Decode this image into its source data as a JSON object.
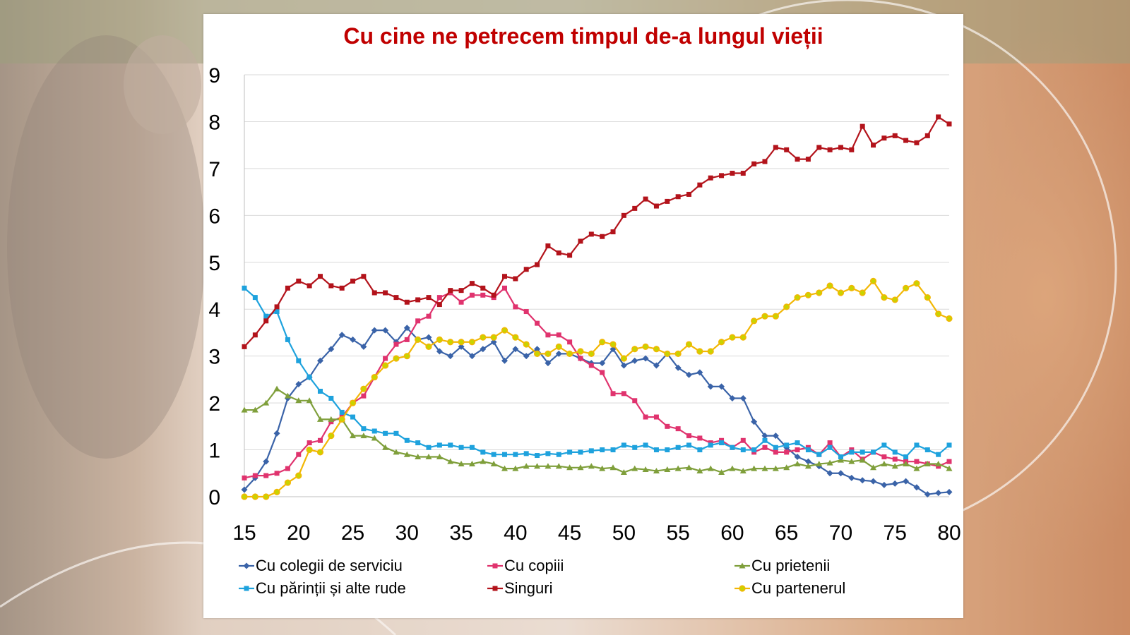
{
  "chart_data": {
    "type": "line",
    "title": "Cu cine ne petrecem timpul de-a lungul vieții",
    "xlabel": "",
    "ylabel": "",
    "xlim": [
      15,
      80
    ],
    "ylim": [
      0,
      9
    ],
    "x_ticks": [
      15,
      20,
      25,
      30,
      35,
      40,
      45,
      50,
      55,
      60,
      65,
      70,
      75,
      80
    ],
    "y_ticks": [
      0,
      1,
      2,
      3,
      4,
      5,
      6,
      7,
      8,
      9
    ],
    "grid": true,
    "legend_position": "bottom",
    "x": [
      15,
      16,
      17,
      18,
      19,
      20,
      21,
      22,
      23,
      24,
      25,
      26,
      27,
      28,
      29,
      30,
      31,
      32,
      33,
      34,
      35,
      36,
      37,
      38,
      39,
      40,
      41,
      42,
      43,
      44,
      45,
      46,
      47,
      48,
      49,
      50,
      51,
      52,
      53,
      54,
      55,
      56,
      57,
      58,
      59,
      60,
      61,
      62,
      63,
      64,
      65,
      66,
      67,
      68,
      69,
      70,
      71,
      72,
      73,
      74,
      75,
      76,
      77,
      78,
      79,
      80
    ],
    "series": [
      {
        "name": "Cu colegii de serviciu",
        "color": "#3a63a8",
        "marker": "diamond",
        "values": [
          0.15,
          0.4,
          0.75,
          1.35,
          2.1,
          2.4,
          2.55,
          2.9,
          3.15,
          3.45,
          3.35,
          3.2,
          3.55,
          3.55,
          3.3,
          3.6,
          3.35,
          3.4,
          3.1,
          3.0,
          3.2,
          3.0,
          3.15,
          3.3,
          2.9,
          3.15,
          3.0,
          3.15,
          2.85,
          3.05,
          3.05,
          2.95,
          2.85,
          2.85,
          3.15,
          2.8,
          2.9,
          2.95,
          2.8,
          3.05,
          2.75,
          2.6,
          2.65,
          2.35,
          2.35,
          2.1,
          2.1,
          1.6,
          1.3,
          1.3,
          1.05,
          0.85,
          0.75,
          0.65,
          0.5,
          0.5,
          0.4,
          0.35,
          0.33,
          0.25,
          0.28,
          0.33,
          0.2,
          0.05,
          0.08,
          0.1
        ]
      },
      {
        "name": "Cu copiii",
        "color": "#e0336e",
        "marker": "square",
        "values": [
          0.4,
          0.45,
          0.45,
          0.5,
          0.6,
          0.9,
          1.15,
          1.2,
          1.6,
          1.7,
          2.0,
          2.15,
          2.55,
          2.95,
          3.25,
          3.35,
          3.75,
          3.85,
          4.25,
          4.35,
          4.15,
          4.3,
          4.3,
          4.25,
          4.45,
          4.05,
          3.95,
          3.7,
          3.45,
          3.45,
          3.3,
          2.95,
          2.8,
          2.65,
          2.2,
          2.2,
          2.05,
          1.7,
          1.7,
          1.5,
          1.45,
          1.3,
          1.25,
          1.15,
          1.2,
          1.05,
          1.2,
          0.95,
          1.05,
          0.95,
          0.95,
          1.0,
          1.05,
          0.9,
          1.15,
          0.85,
          1.0,
          0.8,
          0.95,
          0.85,
          0.8,
          0.75,
          0.75,
          0.7,
          0.65,
          0.75
        ]
      },
      {
        "name": "Cu prietenii",
        "color": "#7f9f3b",
        "marker": "triangle",
        "values": [
          1.85,
          1.85,
          2.0,
          2.3,
          2.15,
          2.05,
          2.05,
          1.65,
          1.65,
          1.65,
          1.3,
          1.3,
          1.25,
          1.05,
          0.95,
          0.9,
          0.85,
          0.85,
          0.85,
          0.75,
          0.7,
          0.7,
          0.75,
          0.7,
          0.6,
          0.6,
          0.65,
          0.65,
          0.65,
          0.65,
          0.62,
          0.62,
          0.65,
          0.6,
          0.62,
          0.52,
          0.6,
          0.58,
          0.55,
          0.58,
          0.6,
          0.62,
          0.55,
          0.6,
          0.52,
          0.6,
          0.55,
          0.6,
          0.6,
          0.6,
          0.62,
          0.7,
          0.65,
          0.7,
          0.72,
          0.78,
          0.75,
          0.78,
          0.62,
          0.7,
          0.65,
          0.7,
          0.6,
          0.7,
          0.7,
          0.6
        ]
      },
      {
        "name": "Cu părinții și alte rude",
        "color": "#1ea2dd",
        "marker": "square",
        "values": [
          4.45,
          4.25,
          3.85,
          3.95,
          3.35,
          2.9,
          2.55,
          2.25,
          2.1,
          1.8,
          1.7,
          1.45,
          1.4,
          1.35,
          1.35,
          1.2,
          1.15,
          1.05,
          1.1,
          1.1,
          1.05,
          1.05,
          0.95,
          0.9,
          0.9,
          0.9,
          0.92,
          0.88,
          0.92,
          0.9,
          0.95,
          0.95,
          0.98,
          1.0,
          1.0,
          1.1,
          1.05,
          1.1,
          1.0,
          1.0,
          1.05,
          1.1,
          1.0,
          1.1,
          1.15,
          1.05,
          1.0,
          1.0,
          1.2,
          1.05,
          1.1,
          1.15,
          1.0,
          0.9,
          1.05,
          0.85,
          0.95,
          0.95,
          0.95,
          1.1,
          0.95,
          0.85,
          1.1,
          1.0,
          0.9,
          1.1
        ]
      },
      {
        "name": "Singuri",
        "color": "#b3131b",
        "marker": "square",
        "values": [
          3.2,
          3.45,
          3.75,
          4.05,
          4.45,
          4.6,
          4.5,
          4.7,
          4.5,
          4.45,
          4.6,
          4.7,
          4.35,
          4.35,
          4.25,
          4.15,
          4.2,
          4.25,
          4.1,
          4.4,
          4.4,
          4.55,
          4.45,
          4.3,
          4.7,
          4.65,
          4.85,
          4.95,
          5.35,
          5.2,
          5.15,
          5.45,
          5.6,
          5.55,
          5.65,
          6.0,
          6.15,
          6.35,
          6.2,
          6.3,
          6.4,
          6.45,
          6.65,
          6.8,
          6.85,
          6.9,
          6.9,
          7.1,
          7.15,
          7.45,
          7.4,
          7.2,
          7.2,
          7.45,
          7.4,
          7.45,
          7.4,
          7.9,
          7.5,
          7.65,
          7.7,
          7.6,
          7.55,
          7.7,
          8.1,
          7.95
        ]
      },
      {
        "name": "Cu partenerul",
        "color": "#f2b705",
        "marker": "circle",
        "values": [
          0.0,
          0.0,
          0.0,
          0.1,
          0.3,
          0.45,
          1.0,
          0.95,
          1.3,
          1.65,
          2.0,
          2.3,
          2.55,
          2.8,
          2.95,
          3.0,
          3.35,
          3.2,
          3.35,
          3.3,
          3.3,
          3.3,
          3.4,
          3.4,
          3.55,
          3.4,
          3.25,
          3.05,
          3.05,
          3.2,
          3.05,
          3.1,
          3.05,
          3.3,
          3.25,
          2.95,
          3.15,
          3.2,
          3.15,
          3.05,
          3.05,
          3.25,
          3.1,
          3.1,
          3.3,
          3.4,
          3.4,
          3.75,
          3.85,
          3.85,
          4.05,
          4.25,
          4.3,
          4.35,
          4.5,
          4.35,
          4.45,
          4.35,
          4.6,
          4.25,
          4.2,
          4.45,
          4.55,
          4.25,
          3.9,
          3.8
        ]
      }
    ]
  }
}
